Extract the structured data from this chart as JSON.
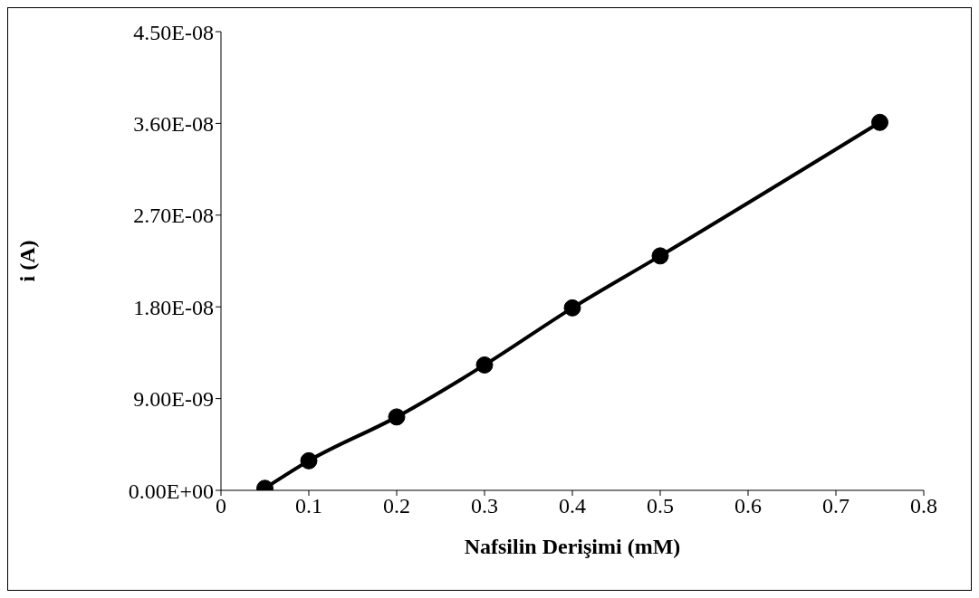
{
  "chart_data": {
    "type": "line",
    "xlabel": "Nafsilin Derişimi (mM)",
    "ylabel": "i (A)",
    "x": [
      0.05,
      0.1,
      0.2,
      0.3,
      0.4,
      0.5,
      0.75
    ],
    "series": [
      {
        "color": "#000000",
        "values": [
          2e-10,
          2.9e-09,
          7.2e-09,
          1.23e-08,
          1.79e-08,
          2.3e-08,
          3.61e-08
        ]
      }
    ],
    "xlim": [
      0,
      0.8
    ],
    "xticks": [
      0,
      0.1,
      0.2,
      0.3,
      0.4,
      0.5,
      0.6,
      0.7,
      0.8
    ],
    "ylim": [
      0,
      4.5e-08
    ],
    "yticks": [
      {
        "value": 0,
        "label": "0.00E+00"
      },
      {
        "value": 9e-09,
        "label": "9.00E-09"
      },
      {
        "value": 1.8e-08,
        "label": "1.80E-08"
      },
      {
        "value": 2.7e-08,
        "label": "2.70E-08"
      },
      {
        "value": 3.6e-08,
        "label": "3.60E-08"
      },
      {
        "value": 4.5e-08,
        "label": "4.50E-08"
      }
    ],
    "grid": false,
    "legend": false,
    "marker": "circle",
    "line_style": "solid"
  }
}
